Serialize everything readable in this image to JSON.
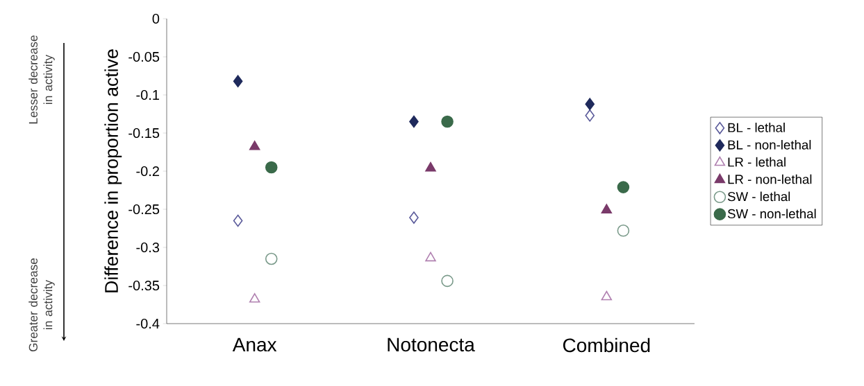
{
  "chart_data": {
    "type": "scatter",
    "ylabel": "Difference in proportion active",
    "categories": [
      "Anax",
      "Notonecta",
      "Combined"
    ],
    "series": [
      {
        "name": "BL - lethal",
        "color": "#5a5a9a",
        "marker": "diamond",
        "values": [
          -0.265,
          -0.261,
          -0.127
        ]
      },
      {
        "name": "BL - non-lethal",
        "color": "#1f2a5c",
        "marker": "diamond",
        "values": [
          -0.082,
          -0.135,
          -0.112
        ]
      },
      {
        "name": "LR - lethal",
        "color": "#b080b0",
        "marker": "triangle",
        "values": [
          -0.368,
          -0.314,
          -0.365
        ]
      },
      {
        "name": "LR - non-lethal",
        "color": "#7a3a6a",
        "marker": "triangle",
        "values": [
          -0.168,
          -0.196,
          -0.251
        ]
      },
      {
        "name": "SW - lethal",
        "color": "#7a9a8a",
        "marker": "circle",
        "values": [
          -0.315,
          -0.344,
          -0.278
        ]
      },
      {
        "name": "SW - non-lethal",
        "color": "#3a6a4a",
        "marker": "circle",
        "values": [
          -0.195,
          -0.135,
          -0.221
        ]
      }
    ],
    "ylim": [
      -0.4,
      0
    ],
    "yticks": [
      0,
      -0.05,
      -0.1,
      -0.15,
      -0.2,
      -0.25,
      -0.3,
      -0.35,
      -0.4
    ],
    "grid": false,
    "legend": "right",
    "annotations": [
      "Lesser decrease in activity",
      "Greater decrease in activity"
    ]
  }
}
